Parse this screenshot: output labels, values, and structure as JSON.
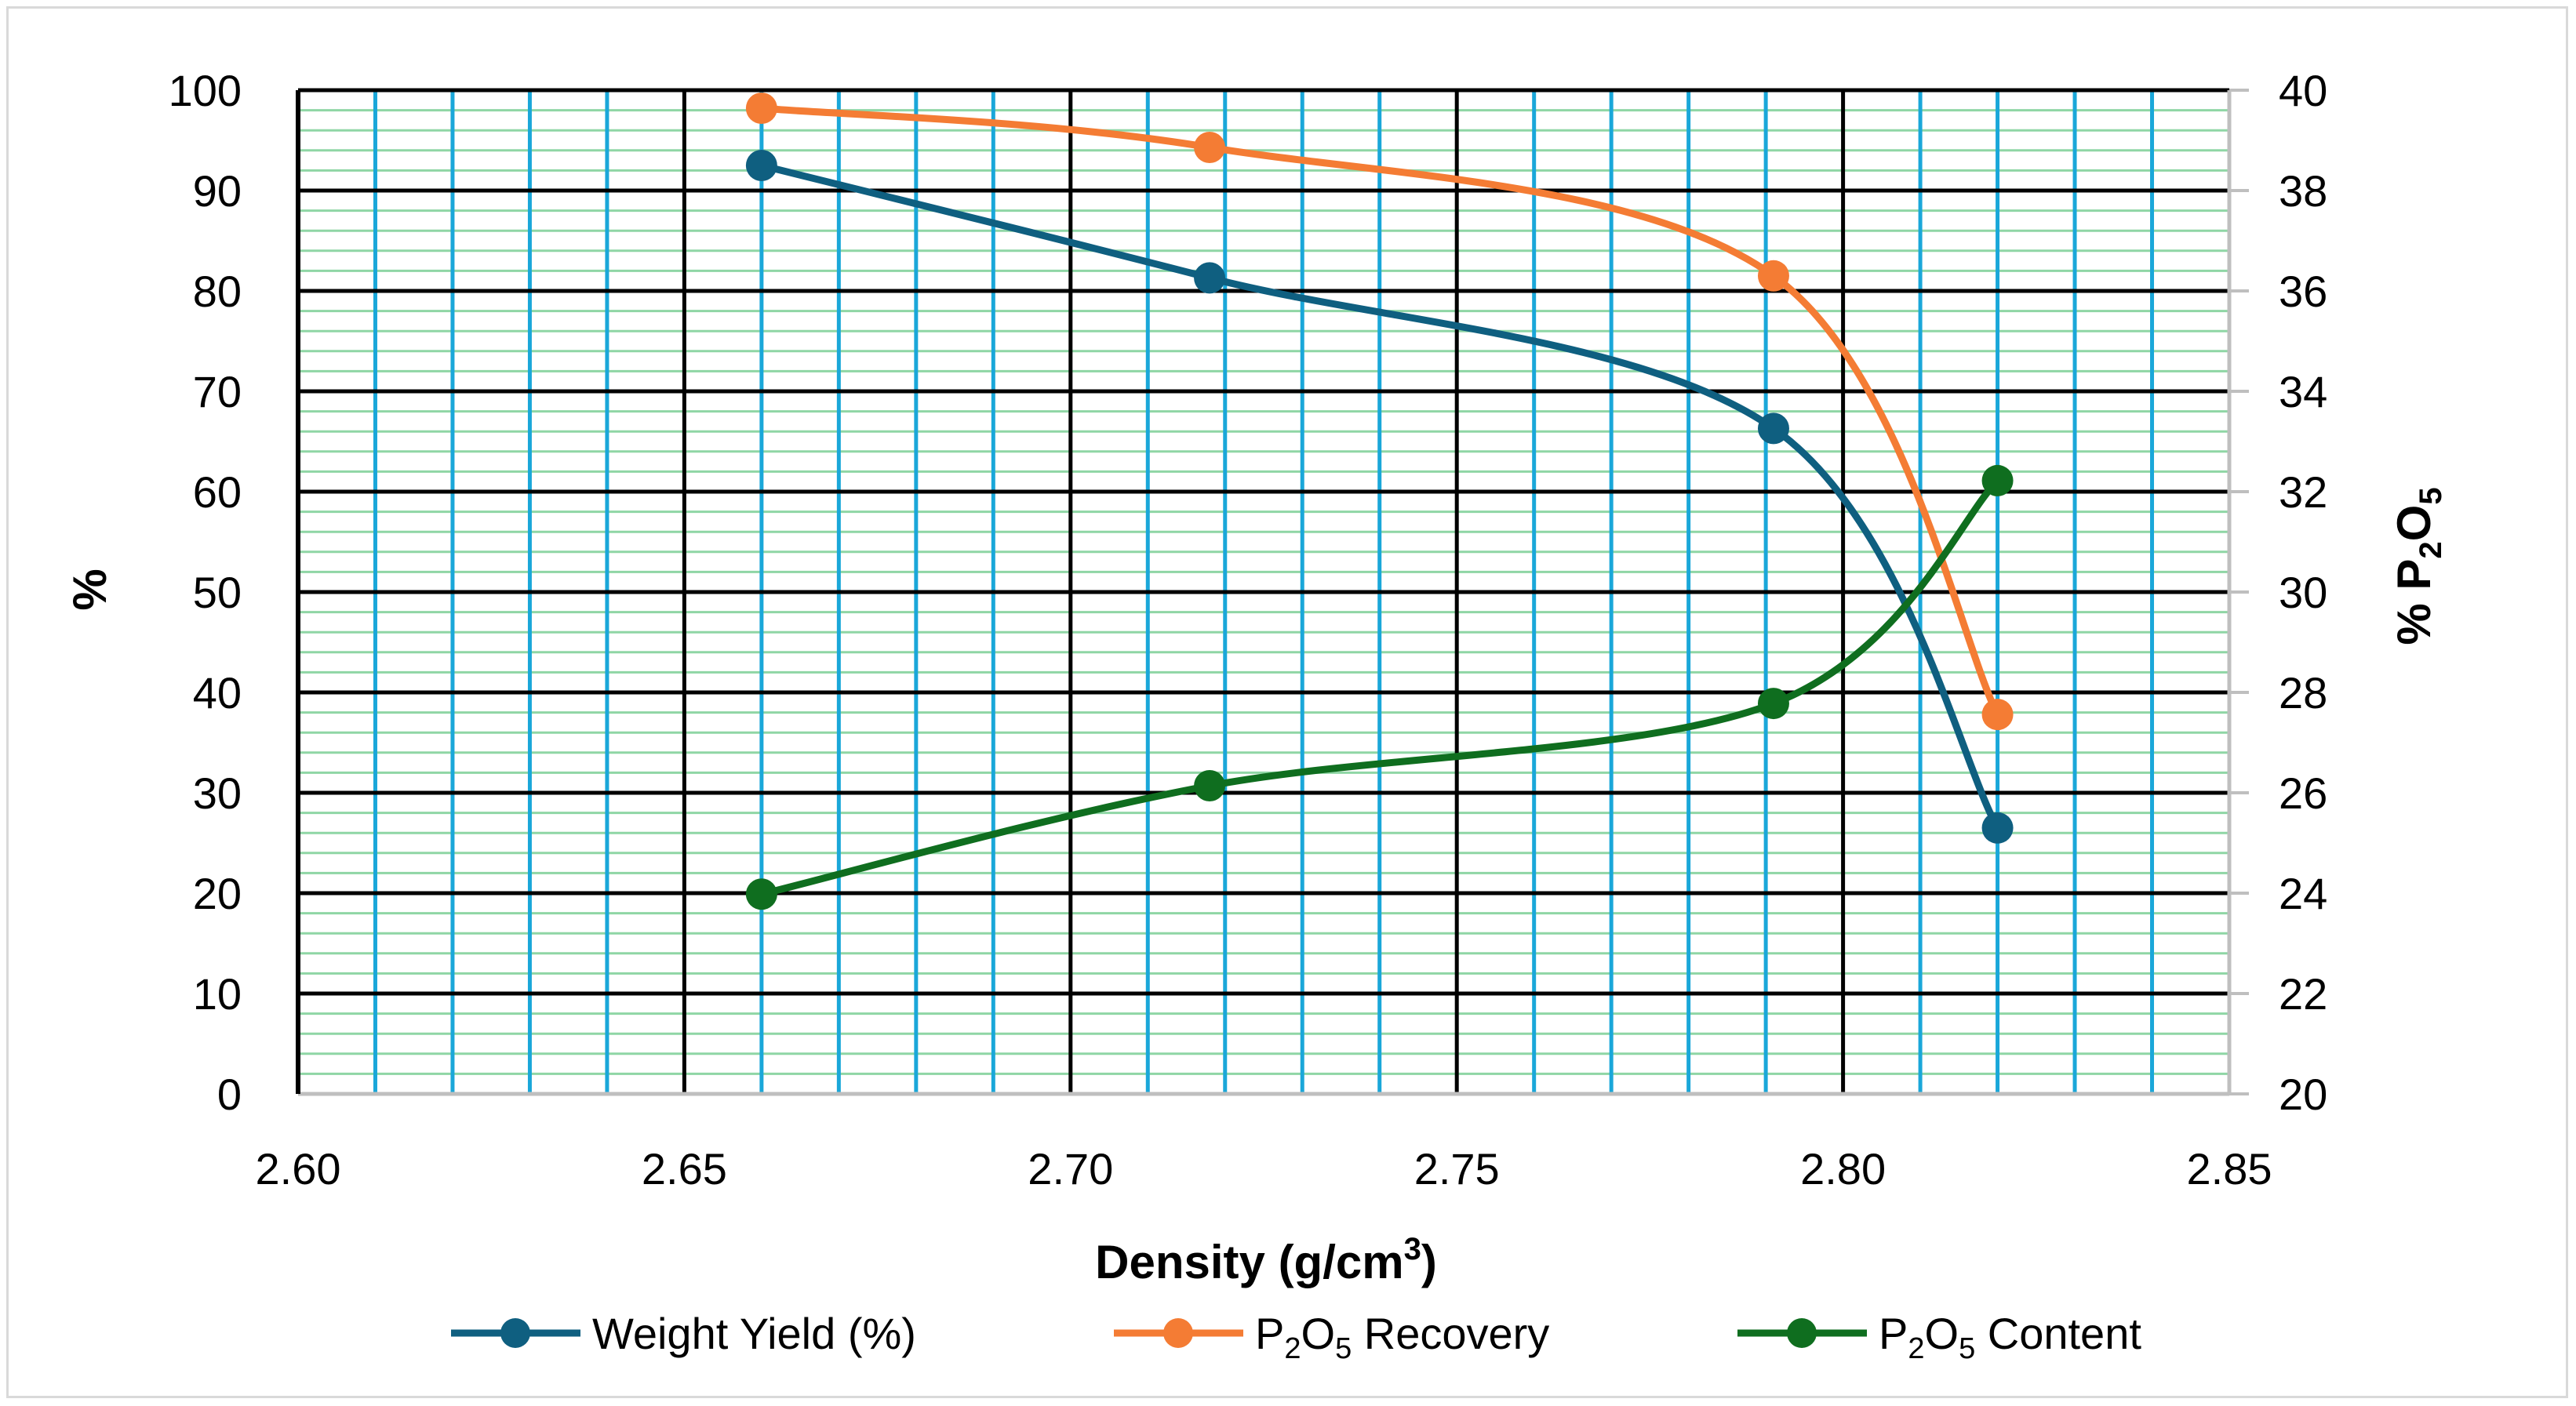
{
  "chart_data": {
    "type": "line",
    "title": "",
    "xlabel": "Density (g/cm",
    "xlabel_sup": "3",
    "xlabel_tail": ")",
    "ylabel": "%",
    "y2label_prefix": "% P",
    "y2label_sub1": "2",
    "y2label_mid": "O",
    "y2label_sub2": "5",
    "xlim": [
      2.6,
      2.85
    ],
    "ylim": [
      0,
      100
    ],
    "y2lim": [
      20,
      40
    ],
    "x_ticks": [
      "2.60",
      "2.65",
      "2.70",
      "2.75",
      "2.80",
      "2.85"
    ],
    "y_ticks": [
      "0",
      "10",
      "20",
      "30",
      "40",
      "50",
      "60",
      "70",
      "80",
      "90",
      "100"
    ],
    "y2_ticks": [
      "20",
      "22",
      "24",
      "26",
      "28",
      "30",
      "32",
      "34",
      "36",
      "38",
      "40"
    ],
    "x": [
      2.66,
      2.718,
      2.791,
      2.82
    ],
    "series": [
      {
        "name": "Weight Yield (%)",
        "axis": "left",
        "values": [
          92.5,
          81.3,
          66.3,
          26.5
        ],
        "color": "#0f5f80"
      },
      {
        "name": "P2O5 Recovery",
        "axis": "left",
        "values": [
          98.2,
          94.3,
          81.5,
          37.8
        ],
        "color": "#f47c34"
      },
      {
        "name": "P2O5 Content",
        "axis": "right",
        "values": [
          23.98,
          26.14,
          27.78,
          32.22
        ],
        "color": "#0f6e1f"
      }
    ],
    "legend": [
      {
        "prefix": "Weight Yield (%)",
        "sub": "",
        "suffix": ""
      },
      {
        "prefix": "P",
        "sub": "2",
        "suffix": "O",
        "sub2": "5",
        "tail": " Recovery"
      },
      {
        "prefix": "P",
        "sub": "2",
        "suffix": "O",
        "sub2": "5",
        "tail": " Content"
      }
    ],
    "legend_position": "bottom",
    "grid": true,
    "colors": {
      "major_grid": "#000000",
      "minor_vgrid": "#1aa7d9",
      "minor_hgrid": "#8fd6a5",
      "frame_right": "#bfbfbf"
    }
  }
}
